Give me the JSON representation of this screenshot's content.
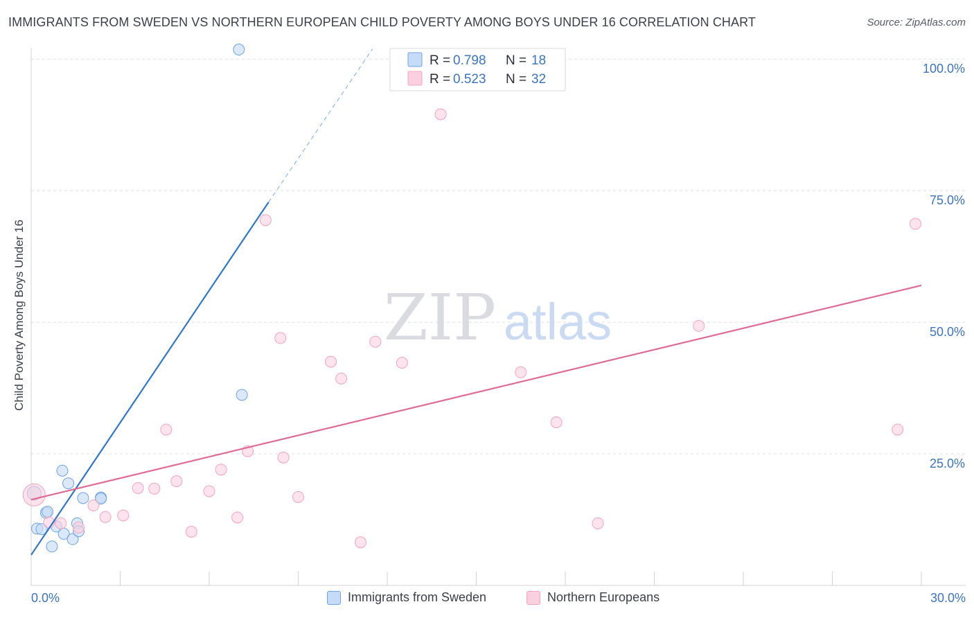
{
  "header": {
    "title": "IMMIGRANTS FROM SWEDEN VS NORTHERN EUROPEAN CHILD POVERTY AMONG BOYS UNDER 16 CORRELATION CHART",
    "source": "Source: ZipAtlas.com"
  },
  "watermark": {
    "zip": "ZIP",
    "atlas": "atlas"
  },
  "chart_data": {
    "type": "scatter",
    "title": "IMMIGRANTS FROM SWEDEN VS NORTHERN EUROPEAN CHILD POVERTY AMONG BOYS UNDER 16 CORRELATION CHART",
    "xlabel": "",
    "ylabel": "Child Poverty Among Boys Under 16",
    "xlim": [
      0,
      30
    ],
    "ylim": [
      0,
      102
    ],
    "x_tick_labels": [
      "0.0%",
      "30.0%"
    ],
    "y_ticks": [
      25,
      50,
      75,
      100
    ],
    "y_tick_labels": [
      "25.0%",
      "50.0%",
      "75.0%",
      "100.0%"
    ],
    "grid": true,
    "legend_stats": [
      {
        "r_label": "R =",
        "r_value": "0.798",
        "n_label": "N =",
        "n_value": "18"
      },
      {
        "r_label": "R =",
        "r_value": "0.523",
        "n_label": "N =",
        "n_value": "32"
      }
    ],
    "series": [
      {
        "name": "Immigrants from Sweden",
        "color": "#6ea3e6",
        "line_color": "#2f77c8",
        "points": [
          [
            0.1,
            17.5
          ],
          [
            0.2,
            10.8
          ],
          [
            0.35,
            10.7
          ],
          [
            0.5,
            13.8
          ],
          [
            0.55,
            14.0
          ],
          [
            0.7,
            7.4
          ],
          [
            0.85,
            11.2
          ],
          [
            1.05,
            21.8
          ],
          [
            1.1,
            9.8
          ],
          [
            1.25,
            19.4
          ],
          [
            1.4,
            8.8
          ],
          [
            1.55,
            11.8
          ],
          [
            1.6,
            10.3
          ],
          [
            1.75,
            16.6
          ],
          [
            2.35,
            16.7
          ],
          [
            2.35,
            16.5
          ],
          [
            7.0,
            101.8
          ],
          [
            7.1,
            36.2
          ]
        ],
        "trend": {
          "x0": 0.0,
          "y0": 5.8,
          "x1": 8.0,
          "y1": 72.8,
          "dash_x1": 11.5,
          "dash_y1": 101.9
        }
      },
      {
        "name": "Northern Europeans",
        "color": "#f4a3bd",
        "line_color": "#e06a93",
        "points": [
          [
            0.1,
            17.2
          ],
          [
            0.6,
            12.0
          ],
          [
            1.0,
            11.8
          ],
          [
            1.6,
            11.0
          ],
          [
            2.1,
            15.2
          ],
          [
            2.5,
            13.0
          ],
          [
            3.1,
            13.3
          ],
          [
            3.6,
            18.5
          ],
          [
            4.15,
            18.4
          ],
          [
            4.55,
            29.6
          ],
          [
            4.9,
            19.8
          ],
          [
            5.4,
            10.2
          ],
          [
            6.0,
            17.9
          ],
          [
            6.4,
            22.0
          ],
          [
            6.95,
            12.9
          ],
          [
            7.3,
            25.5
          ],
          [
            7.9,
            69.4
          ],
          [
            8.4,
            47.0
          ],
          [
            8.5,
            24.3
          ],
          [
            9.0,
            16.8
          ],
          [
            10.1,
            42.5
          ],
          [
            10.45,
            39.3
          ],
          [
            11.1,
            8.2
          ],
          [
            11.6,
            46.3
          ],
          [
            12.5,
            42.3
          ],
          [
            13.8,
            89.5
          ],
          [
            16.5,
            40.5
          ],
          [
            17.7,
            31.0
          ],
          [
            19.1,
            11.8
          ],
          [
            22.5,
            49.3
          ],
          [
            29.2,
            29.6
          ],
          [
            29.8,
            68.7
          ]
        ],
        "trend": {
          "x0": 0.0,
          "y0": 16.3,
          "x1": 30.0,
          "y1": 57.0
        }
      }
    ]
  }
}
